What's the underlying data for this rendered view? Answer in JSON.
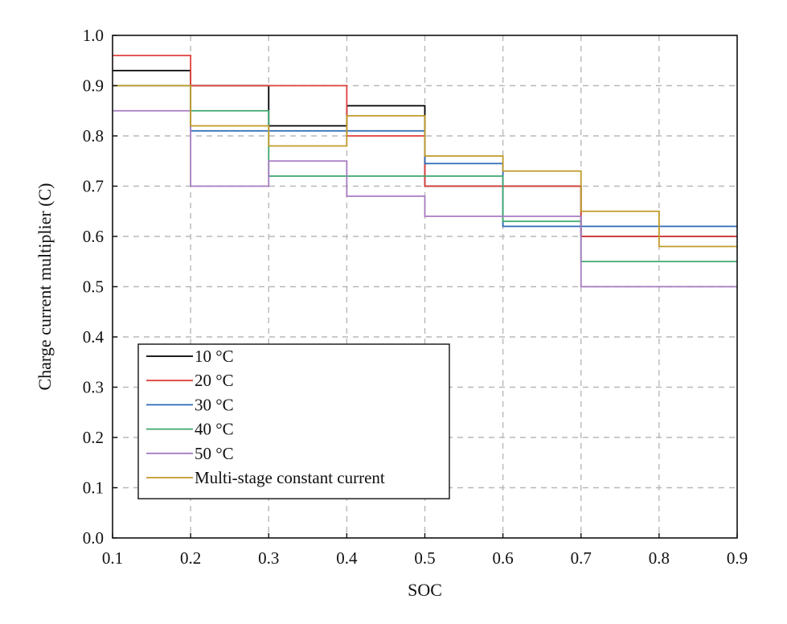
{
  "chart_data": {
    "type": "line",
    "step": "post",
    "xlabel": "SOC",
    "ylabel": "Charge current multiplier (C)",
    "xlim": [
      0.1,
      0.9
    ],
    "ylim": [
      0.0,
      1.0
    ],
    "xticks": [
      "0.1",
      "0.2",
      "0.3",
      "0.4",
      "0.5",
      "0.6",
      "0.7",
      "0.8",
      "0.9"
    ],
    "yticks": [
      "0.0",
      "0.1",
      "0.2",
      "0.3",
      "0.4",
      "0.5",
      "0.6",
      "0.7",
      "0.8",
      "0.9",
      "1.0"
    ],
    "grid": true,
    "grid_style": "dashed",
    "legend_position": "lower-left",
    "series": [
      {
        "name": "10 °C",
        "color": "#000000",
        "x": [
          0.1,
          0.2,
          0.3,
          0.4,
          0.5,
          0.6,
          0.7,
          0.9
        ],
        "y": [
          0.93,
          0.9,
          0.82,
          0.86,
          0.7,
          0.7,
          0.6,
          0.6
        ]
      },
      {
        "name": "20 °C",
        "color": "#e0413e",
        "x": [
          0.1,
          0.2,
          0.4,
          0.5,
          0.6,
          0.7,
          0.9
        ],
        "y": [
          0.96,
          0.9,
          0.8,
          0.7,
          0.7,
          0.6,
          0.6
        ]
      },
      {
        "name": "30 °C",
        "color": "#2d6ab6",
        "x": [
          0.1,
          0.2,
          0.3,
          0.4,
          0.5,
          0.6,
          0.7,
          0.9
        ],
        "y": [
          0.9,
          0.81,
          0.81,
          0.81,
          0.745,
          0.62,
          0.62,
          0.62
        ]
      },
      {
        "name": "40 °C",
        "color": "#3ea66e",
        "x": [
          0.1,
          0.2,
          0.3,
          0.4,
          0.5,
          0.6,
          0.7,
          0.9
        ],
        "y": [
          0.9,
          0.85,
          0.72,
          0.72,
          0.72,
          0.63,
          0.55,
          0.55
        ]
      },
      {
        "name": "50 °C",
        "color": "#a77bc2",
        "x": [
          0.1,
          0.2,
          0.3,
          0.4,
          0.5,
          0.6,
          0.7,
          0.9
        ],
        "y": [
          0.85,
          0.7,
          0.75,
          0.68,
          0.64,
          0.64,
          0.5,
          0.5
        ]
      },
      {
        "name": "Multi-stage constant current",
        "color": "#c19a28",
        "x": [
          0.1,
          0.2,
          0.3,
          0.4,
          0.5,
          0.6,
          0.7,
          0.8,
          0.9
        ],
        "y": [
          0.9,
          0.82,
          0.78,
          0.84,
          0.76,
          0.73,
          0.65,
          0.58,
          0.58
        ]
      }
    ]
  }
}
